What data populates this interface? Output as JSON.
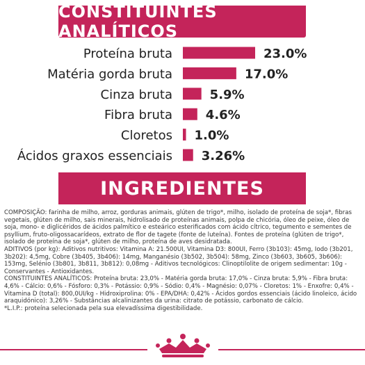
{
  "headings": {
    "analytical": "CONSTITUINTES ANALÍTICOS",
    "ingredients": "INGREDIENTES"
  },
  "chart_data": {
    "type": "bar",
    "orientation": "horizontal",
    "categories": [
      "Proteína bruta",
      "Matéria gorda bruta",
      "Cinza bruta",
      "Fibra bruta",
      "Cloretos",
      "Ácidos graxos essenciais"
    ],
    "values": [
      23.0,
      17.0,
      5.9,
      4.6,
      1.0,
      3.26
    ],
    "labels": [
      "23.0%",
      "17.0%",
      "5.9%",
      "4.6%",
      "1.0%",
      "3.26%"
    ],
    "xlim": [
      0,
      23
    ],
    "grid": false,
    "legend": "none",
    "bar_color": "#c4245a"
  },
  "ingredients_text": [
    "COMPOSIÇÃO: farinha de milho, arroz, gorduras animais, glúten de trigo*, milho, isolado de proteína de soja*, fibras vegetais, glúten de milho, sais minerais, hidrolisado de proteínas animais, polpa de chicória, óleo de peixe, óleo de soja, mono- e diglicéridos de ácidos palmítico e esteárico esterificados com ácido cítrico, tegumento e sementes de psyllium, fruto-oligossacarídeos, extrato de flor de tagete (fonte de luteína). Fontes de proteína (glúten de trigo*, isolado de proteína de soja*, glúten de milho, proteína de aves desidratada.",
    "ADITIVOS (por kg): Aditivos nutritivos: Vitamina A: 21.500UI, Vitamina D3: 800UI, Ferro (3b103): 45mg, Iodo (3b201, 3b202): 4,5mg, Cobre (3b405, 3b406): 14mg, Manganésio (3b502, 3b504): 58mg, Zinco (3b603, 3b605, 3b606): 153mg, Selénio (3b801, 3b811, 3b812): 0,08mg - Aditivos tecnológicos: Clinoptilolite de origem sedimentar: 10g - Conservantes - Antioxidantes.",
    "CONSTITUINTES ANALÍTICOS: Proteína bruta: 23,0% - Matéria gorda bruta: 17,0% - Cinza bruta: 5,9% - Fibra bruta: 4,6% - Cálcio: 0,6% - Fósforo: 0,3% - Potássio: 0,9% - Sódio: 0,4% - Magnésio: 0,07% - Cloretos: 1% - Enxofre: 0,4% - Vitamina D (total): 800,0UI/kg - Hidroxiprolina: 0% - EPA/DHA: 0,42% - Ácidos gordos essenciais (ácido linoleico, ácido araquidónico): 3,26% - Substâncias alcalinizantes da urina: citrato de potássio, carbonato de cálcio.",
    "*L.I.P.: proteína selecionada pela sua elevadíssima digestibilidade."
  ],
  "logo": {
    "icon": "crown-icon",
    "color": "#c4245a"
  }
}
